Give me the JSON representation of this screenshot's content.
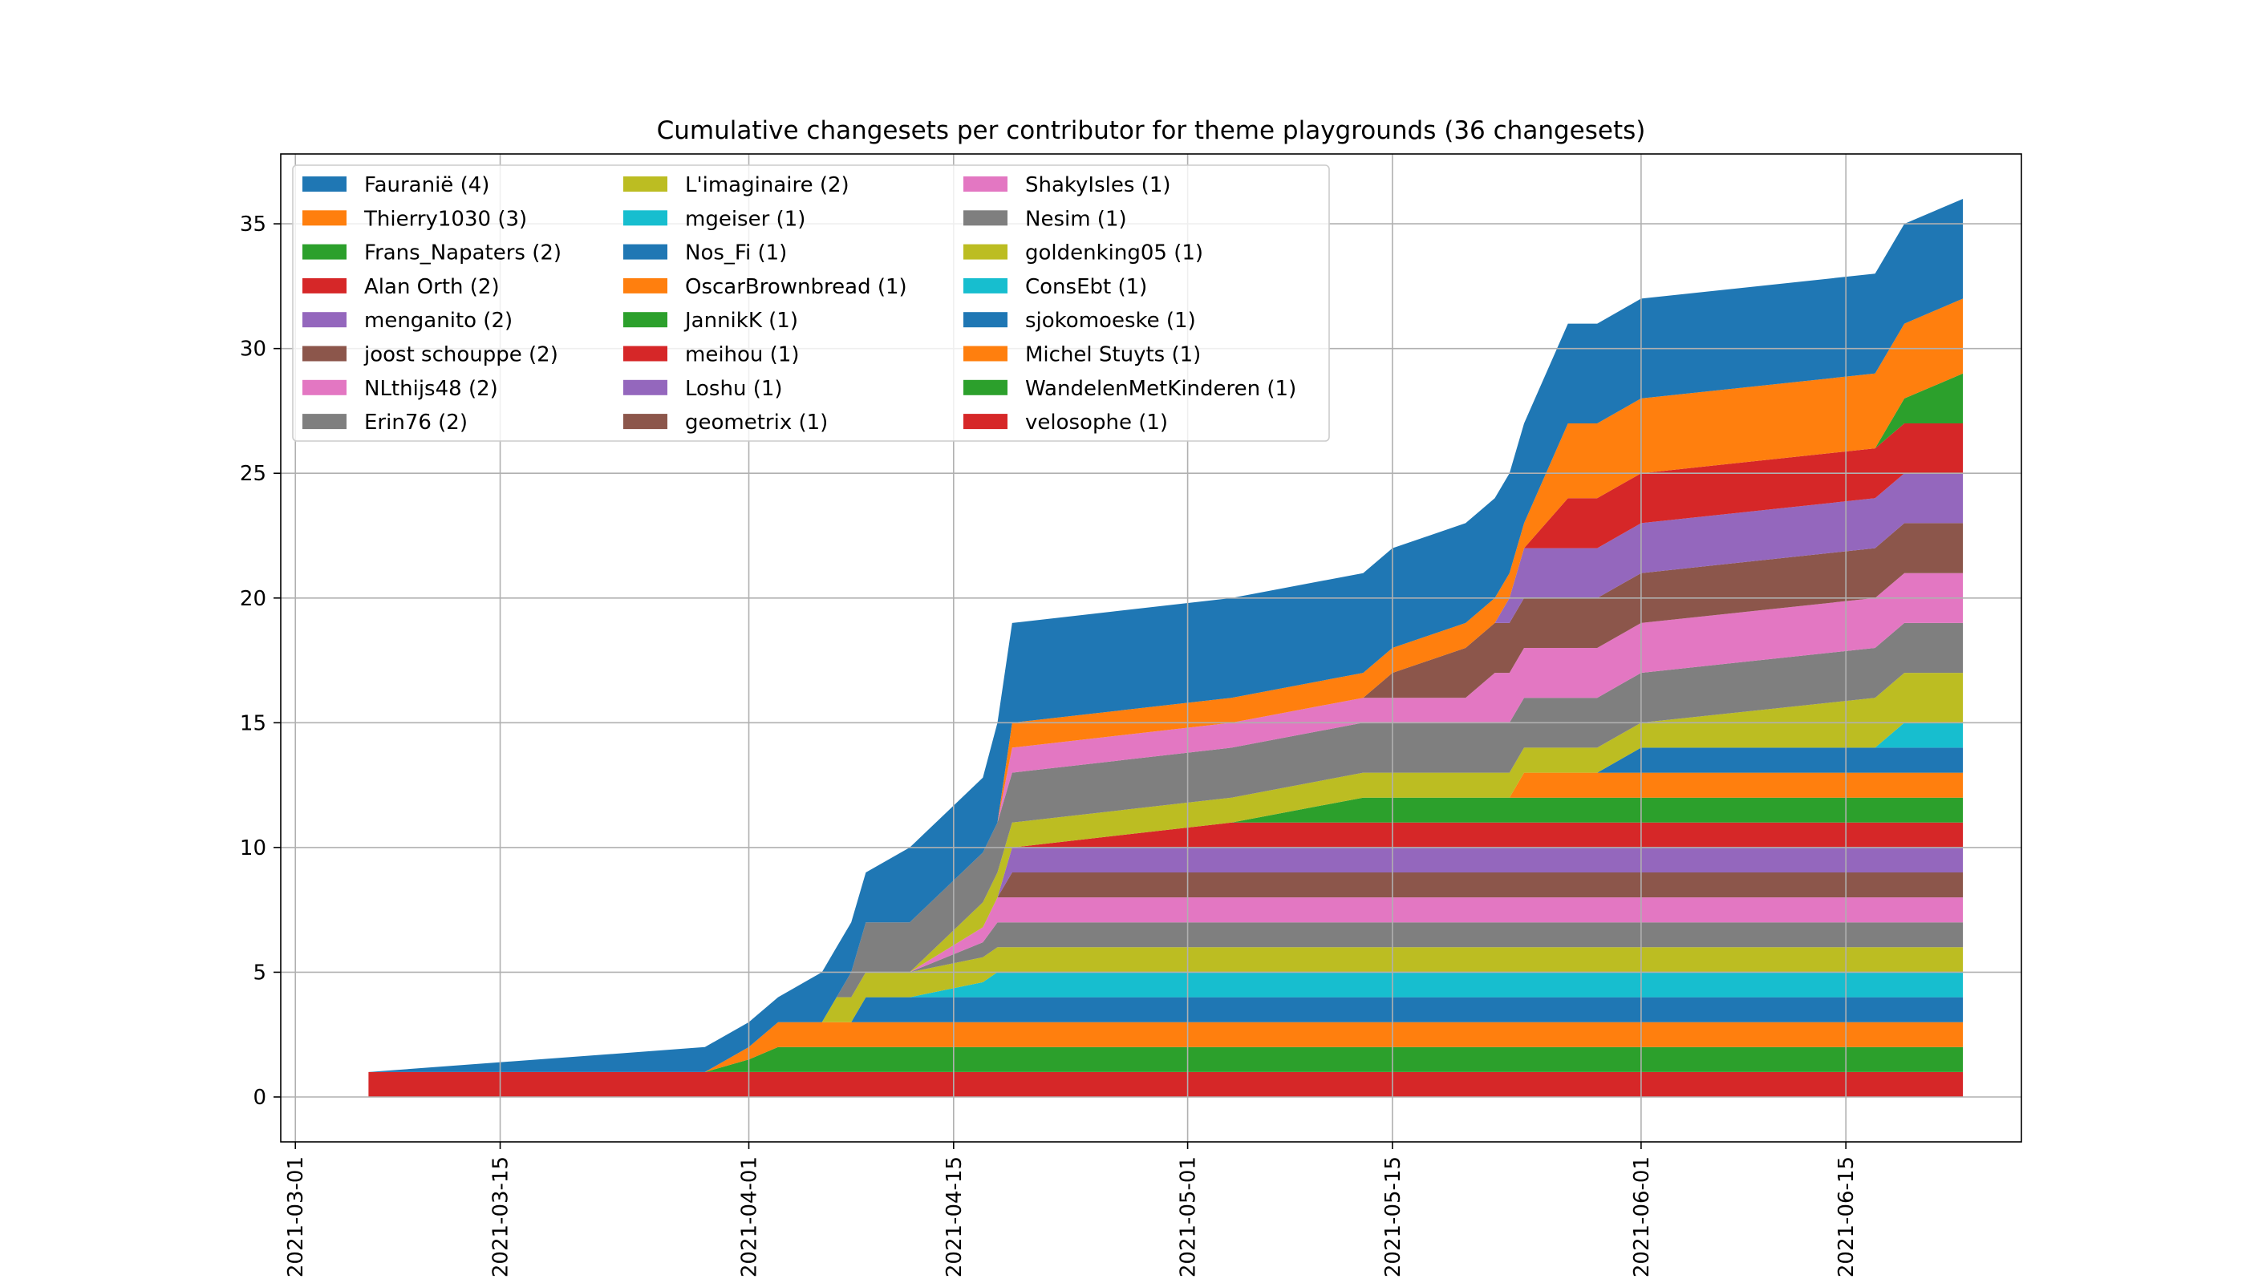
{
  "chart_data": {
    "type": "area",
    "stacked": true,
    "title": "Cumulative changesets per contributor for theme playgrounds (36 changesets)",
    "xlabel": "",
    "ylabel": "",
    "x_axis": "date",
    "xlim": [
      "2021-02-28",
      "2021-06-27"
    ],
    "ylim": [
      -1.8,
      37.8
    ],
    "grid": true,
    "legend_position": "top-left",
    "legend_columns": 3,
    "x_ticks": [
      "2021-03-01",
      "2021-03-15",
      "2021-04-01",
      "2021-04-15",
      "2021-05-01",
      "2021-05-15",
      "2021-06-01",
      "2021-06-15"
    ],
    "y_ticks": [
      0,
      5,
      10,
      15,
      20,
      25,
      30,
      35
    ],
    "x": [
      "2021-03-06",
      "2021-03-29",
      "2021-04-01",
      "2021-04-03",
      "2021-04-06",
      "2021-04-07",
      "2021-04-08",
      "2021-04-09",
      "2021-04-12",
      "2021-04-17",
      "2021-04-18",
      "2021-04-19",
      "2021-05-04",
      "2021-05-13",
      "2021-05-15",
      "2021-05-20",
      "2021-05-22",
      "2021-05-23",
      "2021-05-24",
      "2021-05-27",
      "2021-05-29",
      "2021-06-01",
      "2021-06-17",
      "2021-06-19",
      "2021-06-23"
    ],
    "series": [
      {
        "name": "velosophe (1)",
        "color": "#d62728",
        "values": [
          1,
          1,
          1,
          1,
          1,
          1,
          1,
          1,
          1,
          1,
          1,
          1,
          1,
          1,
          1,
          1,
          1,
          1,
          1,
          1,
          1,
          1,
          1,
          1,
          1
        ]
      },
      {
        "name": "WandelenMetKinderen (1)",
        "color": "#2ca02c",
        "values": [
          0,
          0,
          0.5,
          1,
          1,
          1,
          1,
          1,
          1,
          1,
          1,
          1,
          1,
          1,
          1,
          1,
          1,
          1,
          1,
          1,
          1,
          1,
          1,
          1,
          1
        ]
      },
      {
        "name": "Michel Stuyts (1)",
        "color": "#ff7f0e",
        "values": [
          0,
          0,
          0.5,
          1,
          1,
          1,
          1,
          1,
          1,
          1,
          1,
          1,
          1,
          1,
          1,
          1,
          1,
          1,
          1,
          1,
          1,
          1,
          1,
          1,
          1
        ]
      },
      {
        "name": "sjokomoeske (1)",
        "color": "#1f77b4",
        "values": [
          0,
          0,
          0,
          0,
          0,
          0,
          0,
          1,
          1,
          1,
          1,
          1,
          1,
          1,
          1,
          1,
          1,
          1,
          1,
          1,
          1,
          1,
          1,
          1,
          1
        ]
      },
      {
        "name": "ConsEbt (1)",
        "color": "#17becf",
        "values": [
          0,
          0,
          0,
          0,
          0,
          0,
          0,
          0,
          0,
          0.6,
          1,
          1,
          1,
          1,
          1,
          1,
          1,
          1,
          1,
          1,
          1,
          1,
          1,
          1,
          1
        ]
      },
      {
        "name": "goldenking05 (1)",
        "color": "#bcbd22",
        "values": [
          0,
          0,
          0,
          0,
          0,
          1,
          1,
          1,
          1,
          1,
          1,
          1,
          1,
          1,
          1,
          1,
          1,
          1,
          1,
          1,
          1,
          1,
          1,
          1,
          1
        ]
      },
      {
        "name": "Nesim (1)",
        "color": "#7f7f7f",
        "values": [
          0,
          0,
          0,
          0,
          0,
          0,
          0,
          0,
          0,
          0.6,
          1,
          1,
          1,
          1,
          1,
          1,
          1,
          1,
          1,
          1,
          1,
          1,
          1,
          1,
          1
        ]
      },
      {
        "name": "ShakyIsles (1)",
        "color": "#e377c2",
        "values": [
          0,
          0,
          0,
          0,
          0,
          0,
          0,
          0,
          0,
          0.6,
          1,
          1,
          1,
          1,
          1,
          1,
          1,
          1,
          1,
          1,
          1,
          1,
          1,
          1,
          1
        ]
      },
      {
        "name": "geometrix (1)",
        "color": "#8c564b",
        "values": [
          0,
          0,
          0,
          0,
          0,
          0,
          0,
          0,
          0,
          0,
          0,
          1,
          1,
          1,
          1,
          1,
          1,
          1,
          1,
          1,
          1,
          1,
          1,
          1,
          1
        ]
      },
      {
        "name": "Loshu (1)",
        "color": "#9467bd",
        "values": [
          0,
          0,
          0,
          0,
          0,
          0,
          0,
          0,
          0,
          0,
          0,
          1,
          1,
          1,
          1,
          1,
          1,
          1,
          1,
          1,
          1,
          1,
          1,
          1,
          1
        ]
      },
      {
        "name": "meihou (1)",
        "color": "#d62728",
        "values": [
          0,
          0,
          0,
          0,
          0,
          0,
          0,
          0,
          0,
          0,
          0,
          0,
          1,
          1,
          1,
          1,
          1,
          1,
          1,
          1,
          1,
          1,
          1,
          1,
          1
        ]
      },
      {
        "name": "JannikK (1)",
        "color": "#2ca02c",
        "values": [
          0,
          0,
          0,
          0,
          0,
          0,
          0,
          0,
          0,
          0,
          0,
          0,
          0,
          1,
          1,
          1,
          1,
          1,
          1,
          1,
          1,
          1,
          1,
          1,
          1
        ]
      },
      {
        "name": "OscarBrownbread (1)",
        "color": "#ff7f0e",
        "values": [
          0,
          0,
          0,
          0,
          0,
          0,
          0,
          0,
          0,
          0,
          0,
          0,
          0,
          0,
          0,
          0,
          0,
          0,
          1,
          1,
          1,
          1,
          1,
          1,
          1
        ]
      },
      {
        "name": "Nos_Fi (1)",
        "color": "#1f77b4",
        "values": [
          0,
          0,
          0,
          0,
          0,
          0,
          0,
          0,
          0,
          0,
          0,
          0,
          0,
          0,
          0,
          0,
          0,
          0,
          0,
          0,
          0,
          1,
          1,
          1,
          1
        ]
      },
      {
        "name": "mgeiser (1)",
        "color": "#17becf",
        "values": [
          0,
          0,
          0,
          0,
          0,
          0,
          0,
          0,
          0,
          0,
          0,
          0,
          0,
          0,
          0,
          0,
          0,
          0,
          0,
          0,
          0,
          0,
          0,
          1,
          1
        ]
      },
      {
        "name": "L'imaginaire (2)",
        "color": "#bcbd22",
        "values": [
          0,
          0,
          0,
          0,
          0,
          0,
          0,
          0,
          0,
          1,
          1,
          1,
          1,
          1,
          1,
          1,
          1,
          1,
          1,
          1,
          1,
          1,
          2,
          2,
          2
        ]
      },
      {
        "name": "Erin76 (2)",
        "color": "#7f7f7f",
        "values": [
          0,
          0,
          0,
          0,
          0,
          0,
          1,
          2,
          2,
          2,
          2,
          2,
          2,
          2,
          2,
          2,
          2,
          2,
          2,
          2,
          2,
          2,
          2,
          2,
          2
        ]
      },
      {
        "name": "NLthijs48 (2)",
        "color": "#e377c2",
        "values": [
          0,
          0,
          0,
          0,
          0,
          0,
          0,
          0,
          0,
          0,
          0,
          1,
          1,
          1,
          1,
          1,
          2,
          2,
          2,
          2,
          2,
          2,
          2,
          2,
          2
        ]
      },
      {
        "name": "joost schouppe (2)",
        "color": "#8c564b",
        "values": [
          0,
          0,
          0,
          0,
          0,
          0,
          0,
          0,
          0,
          0,
          0,
          0,
          0,
          0,
          1,
          2,
          2,
          2,
          2,
          2,
          2,
          2,
          2,
          2,
          2
        ]
      },
      {
        "name": "menganito (2)",
        "color": "#9467bd",
        "values": [
          0,
          0,
          0,
          0,
          0,
          0,
          0,
          0,
          0,
          0,
          0,
          0,
          0,
          0,
          0,
          0,
          0,
          1,
          2,
          2,
          2,
          2,
          2,
          2,
          2
        ]
      },
      {
        "name": "Alan Orth (2)",
        "color": "#d62728",
        "values": [
          0,
          0,
          0,
          0,
          0,
          0,
          0,
          0,
          0,
          0,
          0,
          0,
          0,
          0,
          0,
          0,
          0,
          0,
          0,
          2,
          2,
          2,
          2,
          2,
          2
        ]
      },
      {
        "name": "Frans_Napaters (2)",
        "color": "#2ca02c",
        "values": [
          0,
          0,
          0,
          0,
          0,
          0,
          0,
          0,
          0,
          0,
          0,
          0,
          0,
          0,
          0,
          0,
          0,
          0,
          0,
          0,
          0,
          0,
          0,
          1,
          2
        ]
      },
      {
        "name": "Thierry1030 (3)",
        "color": "#ff7f0e",
        "values": [
          0,
          0,
          0,
          0,
          0,
          0,
          0,
          0,
          0,
          0,
          0,
          1,
          1,
          1,
          1,
          1,
          1,
          1,
          1,
          3,
          3,
          3,
          3,
          3,
          3
        ]
      },
      {
        "name": "Fauranië (4)",
        "color": "#1f77b4",
        "values": [
          0,
          1,
          1,
          1,
          2,
          2,
          2,
          2,
          3,
          3,
          4,
          4,
          4,
          4,
          4,
          4,
          4,
          4,
          4,
          4,
          4,
          4,
          4,
          4,
          4
        ]
      }
    ],
    "legend": [
      "Fauranië (4)",
      "Thierry1030 (3)",
      "Frans_Napaters (2)",
      "Alan Orth (2)",
      "menganito (2)",
      "joost schouppe (2)",
      "NLthijs48 (2)",
      "Erin76 (2)",
      "L'imaginaire (2)",
      "mgeiser (1)",
      "Nos_Fi (1)",
      "OscarBrownbread (1)",
      "JannikK (1)",
      "meihou (1)",
      "Loshu (1)",
      "geometrix (1)",
      "ShakyIsles (1)",
      "Nesim (1)",
      "goldenking05 (1)",
      "ConsEbt (1)",
      "sjokomoeske (1)",
      "Michel Stuyts (1)",
      "WandelenMetKinderen (1)",
      "velosophe (1)"
    ]
  }
}
